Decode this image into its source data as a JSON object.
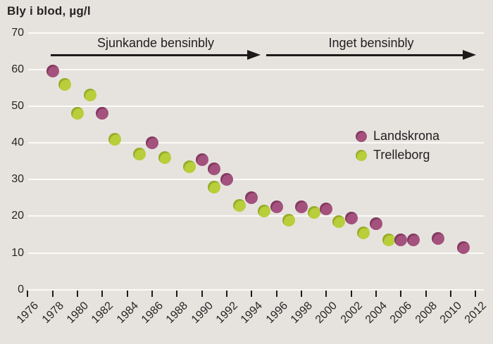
{
  "title": "Bly i blod, µg/l",
  "arrows": [
    {
      "label": "Sjunkande bensinbly"
    },
    {
      "label": "Inget bensinbly"
    }
  ],
  "legend": [
    {
      "label": "Landskrona",
      "color": "#a4517d",
      "color_dark": "#82395f"
    },
    {
      "label": "Trelleborg",
      "color": "#b8ce3a",
      "color_dark": "#97ad29"
    }
  ],
  "colors": {
    "background": "#e6e3df",
    "gridline": "#fbfaf8",
    "text": "#282425",
    "axis": "#1d1b1a"
  },
  "chart_data": {
    "type": "scatter",
    "title": "Bly i blod, µg/l",
    "ylabel": "Bly i blod, µg/l",
    "xlabel": "",
    "xlim": [
      1976,
      2012
    ],
    "ylim": [
      0,
      70
    ],
    "x_ticks": [
      1976,
      1978,
      1980,
      1982,
      1984,
      1986,
      1988,
      1990,
      1992,
      1994,
      1996,
      1998,
      2000,
      2002,
      2004,
      2006,
      2008,
      2010,
      2012
    ],
    "y_ticks": [
      0,
      10,
      20,
      30,
      40,
      50,
      60,
      70
    ],
    "grid": true,
    "legend_position": "right-middle",
    "annotations": [
      {
        "text": "Sjunkande bensinbly",
        "x_range": [
          1977.8,
          1994.7
        ],
        "y": 64
      },
      {
        "text": "Inget bensinbly",
        "x_range": [
          1995.2,
          2012.0
        ],
        "y": 64
      }
    ],
    "series": [
      {
        "name": "Landskrona",
        "color": "#a4517d",
        "color_dark": "#82395f",
        "points": [
          [
            1978,
            59.5
          ],
          [
            1982,
            48
          ],
          [
            1986,
            40
          ],
          [
            1990,
            35.5
          ],
          [
            1991,
            33
          ],
          [
            1992,
            30
          ],
          [
            1994,
            25
          ],
          [
            1996,
            22.5
          ],
          [
            1998,
            22.5
          ],
          [
            2000,
            22
          ],
          [
            2002,
            19.5
          ],
          [
            2004,
            18
          ],
          [
            2006,
            13.5
          ],
          [
            2007,
            13.5
          ],
          [
            2009,
            14
          ],
          [
            2011,
            11.5
          ]
        ]
      },
      {
        "name": "Trelleborg",
        "color": "#b8ce3a",
        "color_dark": "#97ad29",
        "points": [
          [
            1979,
            56
          ],
          [
            1980,
            48
          ],
          [
            1981,
            53
          ],
          [
            1983,
            41
          ],
          [
            1985,
            37
          ],
          [
            1987,
            36
          ],
          [
            1989,
            33.5
          ],
          [
            1991,
            28
          ],
          [
            1993,
            23
          ],
          [
            1995,
            21.5
          ],
          [
            1997,
            19
          ],
          [
            1999,
            21
          ],
          [
            2001,
            18.5
          ],
          [
            2003,
            15.5
          ],
          [
            2005,
            13.5
          ]
        ]
      }
    ]
  }
}
